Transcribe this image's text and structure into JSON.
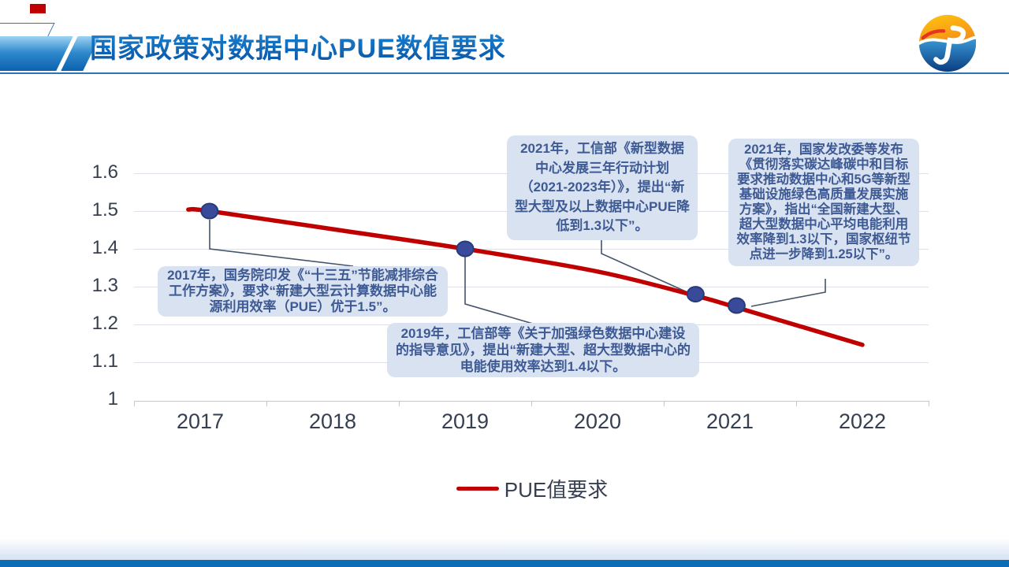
{
  "slide": {
    "title": "国家政策对数据中心PUE数值要求",
    "logo_icon": "jp-globe-logo"
  },
  "colors": {
    "title_blue_top": "#1d86d6",
    "title_blue_bottom": "#0b5bab",
    "header_rule": "#2e74b5",
    "footer_bar": "#0d6cb6",
    "line_red": "#c00000",
    "dot_fill": "#3a4a9a",
    "dot_stroke": "#293a78",
    "connector": "#44546a",
    "callout_bg": "#d9e2f0",
    "callout_text": "#3e5a94",
    "axis_text": "#363f4f",
    "gridline": "#dcdfe5"
  },
  "chart_data": {
    "type": "line",
    "title": "国家政策对数据中心PUE数值要求",
    "xlabel": "",
    "ylabel": "",
    "x_ticklabels": [
      "2017",
      "2018",
      "2019",
      "2020",
      "2021",
      "2022"
    ],
    "y_ticklabels": [
      "1.6",
      "1.5",
      "1.4",
      "1.3",
      "1.2",
      "1.1",
      "1"
    ],
    "ylim": [
      1.0,
      1.6
    ],
    "xlim": [
      2016.5,
      2022.5
    ],
    "grid": "horizontal",
    "legend_position": "bottom-center",
    "series": [
      {
        "name": "PUE值要求",
        "color": "#c00000",
        "points": [
          [
            2016.91,
            1.504
          ],
          [
            2017.07,
            1.5
          ],
          [
            2018,
            1.452
          ],
          [
            2019,
            1.4
          ],
          [
            2020,
            1.34
          ],
          [
            2020.74,
            1.276
          ],
          [
            2021.05,
            1.245
          ],
          [
            2022,
            1.146
          ]
        ]
      }
    ],
    "markers": [
      {
        "x": 2017.07,
        "pue": 1.5
      },
      {
        "x": 2019,
        "pue": 1.4
      },
      {
        "x": 2020.74,
        "pue": 1.28
      },
      {
        "x": 2021.05,
        "pue": 1.25
      }
    ]
  },
  "callouts": [
    {
      "id": "policy-2017",
      "text": "2017年，国务院印发《“十三五”节能减排综合工作方案》，要求“新建大型云计算数据中心能源利用效率（PUE）优于1.5”。"
    },
    {
      "id": "policy-2019",
      "text": "2019年，工信部等《关于加强绿色数据中心建设的指导意见》，提出“新建大型、超大型数据中心的电能使用效率达到1.4以下。"
    },
    {
      "id": "policy-2021-miit",
      "text": "2021年，工信部《新型数据中心发展三年行动计划（2021-2023年）》，提出“新型大型及以上数据中心PUE降低到1.3以下”。"
    },
    {
      "id": "policy-2021-ndrc",
      "text": "2021年，国家发改委等发布《贯彻落实碳达峰碳中和目标要求推动数据中心和5G等新型基础设施绿色高质量发展实施方案》，指出“全国新建大型、超大型数据中心平均电能利用效率降到1.3以下，国家枢纽节点进一步降到1.25以下”。"
    }
  ],
  "legend": {
    "label": "PUE值要求"
  }
}
